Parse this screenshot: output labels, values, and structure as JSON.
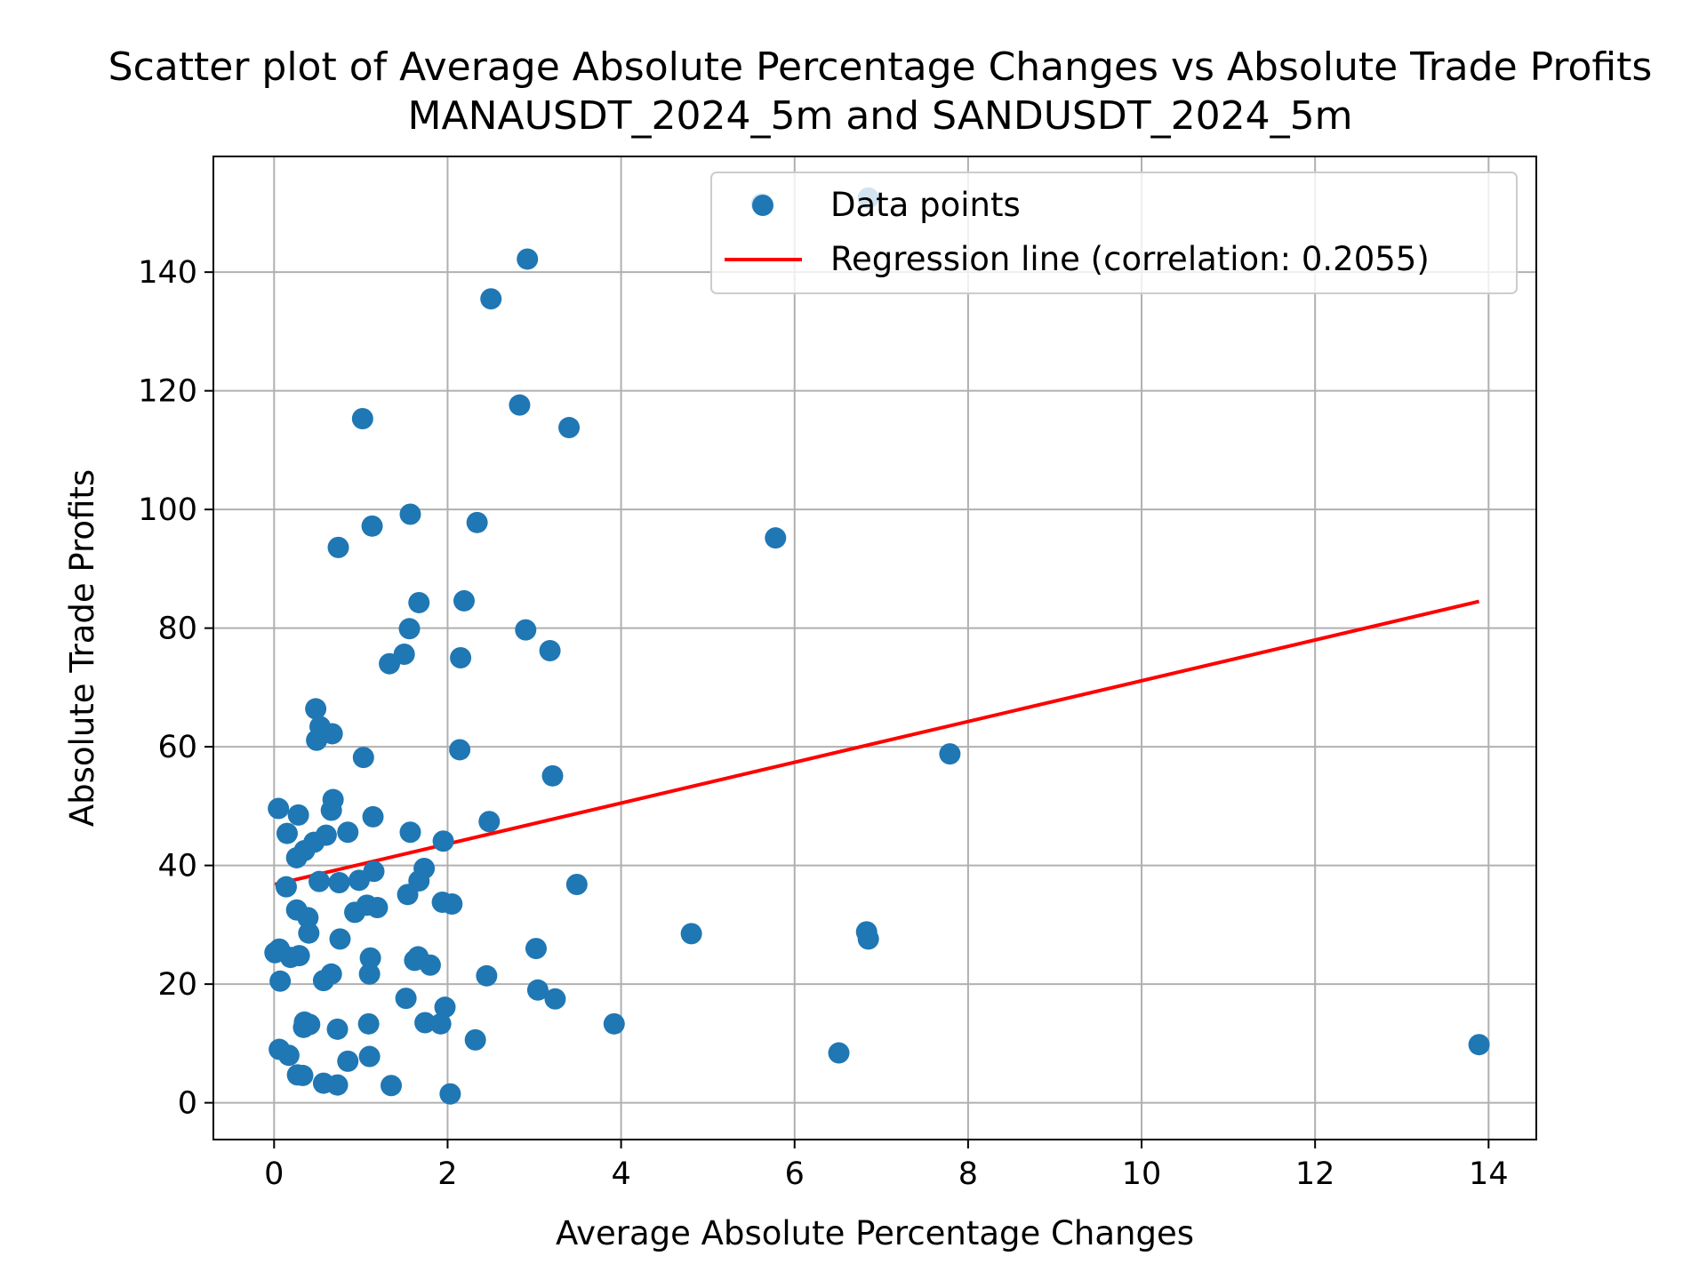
{
  "chart_data": {
    "type": "scatter",
    "title": "Scatter plot of Average Absolute Percentage Changes vs Absolute Trade Profits",
    "subtitle": "MANAUSDT_2024_5m and SANDUSDT_2024_5m",
    "xlabel": "Average Absolute Percentage Changes",
    "ylabel": "Absolute Trade Profits",
    "xlim": [
      -0.7,
      14.55
    ],
    "ylim": [
      -6.2,
      159.5
    ],
    "xticks": [
      0,
      2,
      4,
      6,
      8,
      10,
      12,
      14
    ],
    "yticks": [
      0,
      20,
      40,
      60,
      80,
      100,
      120,
      140
    ],
    "grid": true,
    "legend_position": "upper right",
    "series": [
      {
        "name": "Data points",
        "kind": "scatter",
        "color": "#1f77b4",
        "points": [
          [
            2.92,
            142.2
          ],
          [
            2.5,
            135.5
          ],
          [
            6.85,
            152.5
          ],
          [
            5.62,
            151.5
          ],
          [
            1.02,
            115.3
          ],
          [
            2.83,
            117.6
          ],
          [
            3.4,
            113.8
          ],
          [
            1.57,
            99.2
          ],
          [
            1.13,
            97.2
          ],
          [
            0.74,
            93.6
          ],
          [
            2.34,
            97.8
          ],
          [
            5.78,
            95.2
          ],
          [
            1.67,
            84.3
          ],
          [
            2.19,
            84.6
          ],
          [
            1.56,
            79.9
          ],
          [
            2.9,
            79.7
          ],
          [
            3.18,
            76.2
          ],
          [
            1.5,
            75.6
          ],
          [
            1.33,
            74.0
          ],
          [
            2.15,
            75.0
          ],
          [
            0.48,
            66.4
          ],
          [
            0.53,
            63.4
          ],
          [
            0.67,
            62.2
          ],
          [
            0.49,
            61.1
          ],
          [
            1.03,
            58.2
          ],
          [
            2.14,
            59.5
          ],
          [
            7.79,
            58.8
          ],
          [
            3.21,
            55.1
          ],
          [
            0.68,
            51.1
          ],
          [
            0.05,
            49.6
          ],
          [
            0.28,
            48.5
          ],
          [
            0.66,
            49.3
          ],
          [
            1.14,
            48.2
          ],
          [
            2.48,
            47.4
          ],
          [
            0.15,
            45.4
          ],
          [
            0.6,
            45.1
          ],
          [
            0.85,
            45.6
          ],
          [
            1.57,
            45.6
          ],
          [
            0.46,
            43.9
          ],
          [
            1.95,
            44.1
          ],
          [
            0.26,
            41.3
          ],
          [
            0.35,
            42.5
          ],
          [
            1.73,
            39.5
          ],
          [
            1.15,
            39.0
          ],
          [
            0.14,
            36.4
          ],
          [
            0.52,
            37.3
          ],
          [
            0.75,
            37.1
          ],
          [
            0.98,
            37.5
          ],
          [
            1.67,
            37.4
          ],
          [
            3.49,
            36.8
          ],
          [
            1.54,
            35.1
          ],
          [
            1.94,
            33.8
          ],
          [
            2.05,
            33.5
          ],
          [
            1.07,
            33.3
          ],
          [
            1.19,
            32.9
          ],
          [
            0.93,
            32.1
          ],
          [
            0.26,
            32.5
          ],
          [
            0.39,
            31.2
          ],
          [
            0.4,
            28.6
          ],
          [
            0.76,
            27.6
          ],
          [
            4.81,
            28.5
          ],
          [
            6.83,
            28.8
          ],
          [
            6.85,
            27.6
          ],
          [
            0.06,
            25.9
          ],
          [
            0.01,
            25.3
          ],
          [
            0.19,
            24.5
          ],
          [
            0.29,
            24.8
          ],
          [
            1.11,
            24.4
          ],
          [
            1.62,
            24.0
          ],
          [
            1.66,
            24.6
          ],
          [
            1.8,
            23.2
          ],
          [
            3.02,
            26.0
          ],
          [
            0.07,
            20.5
          ],
          [
            0.57,
            20.6
          ],
          [
            0.66,
            21.7
          ],
          [
            1.1,
            21.7
          ],
          [
            2.45,
            21.4
          ],
          [
            3.04,
            19.0
          ],
          [
            3.24,
            17.5
          ],
          [
            1.52,
            17.6
          ],
          [
            1.97,
            16.1
          ],
          [
            0.35,
            13.6
          ],
          [
            0.41,
            13.2
          ],
          [
            0.34,
            12.7
          ],
          [
            0.73,
            12.4
          ],
          [
            1.09,
            13.3
          ],
          [
            1.74,
            13.5
          ],
          [
            1.92,
            13.3
          ],
          [
            3.92,
            13.3
          ],
          [
            2.32,
            10.6
          ],
          [
            0.06,
            9.0
          ],
          [
            0.17,
            8.0
          ],
          [
            0.85,
            7.0
          ],
          [
            1.1,
            7.8
          ],
          [
            6.51,
            8.4
          ],
          [
            13.89,
            9.8
          ],
          [
            0.27,
            4.7
          ],
          [
            0.33,
            4.6
          ],
          [
            0.57,
            3.3
          ],
          [
            0.73,
            3.0
          ],
          [
            1.35,
            2.9
          ],
          [
            2.03,
            1.5
          ]
        ]
      },
      {
        "name": "Regression line (correlation: 0.2055)",
        "kind": "line",
        "color": "#ff0000",
        "x": [
          0.01,
          13.89
        ],
        "y": [
          36.8,
          84.5
        ]
      }
    ]
  }
}
